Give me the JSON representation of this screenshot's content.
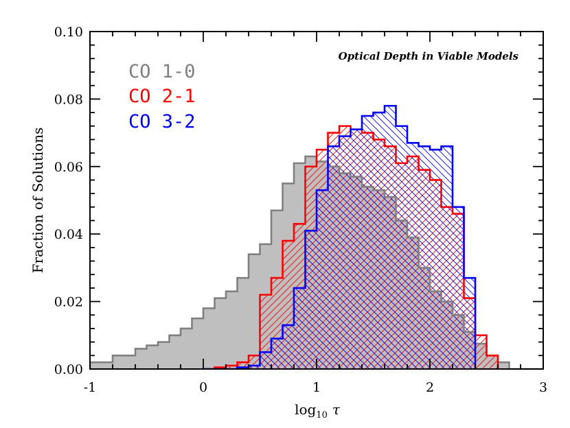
{
  "chart_data": {
    "type": "bar",
    "subtype": "step-histogram",
    "title": "Optical Depth in Viable Models",
    "xlabel_prefix": "log",
    "xlabel_subscript": "10",
    "xlabel_symbol": "τ",
    "ylabel": "Fraction of Solutions",
    "xlim": [
      -1,
      3
    ],
    "ylim": [
      0,
      0.1
    ],
    "xticks": [
      "-1",
      "0",
      "1",
      "2",
      "3"
    ],
    "yticks": [
      "0.00",
      "0.02",
      "0.04",
      "0.06",
      "0.08",
      "0.10"
    ],
    "bin_width": 0.1,
    "legend_position": "top-left",
    "series": [
      {
        "name": "CO 1-0",
        "color": "#808080",
        "fill": "#bfbfbf",
        "x": [
          -1.0,
          -0.9,
          -0.8,
          -0.7,
          -0.6,
          -0.5,
          -0.4,
          -0.3,
          -0.2,
          -0.1,
          0.0,
          0.1,
          0.2,
          0.3,
          0.4,
          0.5,
          0.6,
          0.7,
          0.8,
          0.9,
          1.0,
          1.1,
          1.2,
          1.3,
          1.4,
          1.5,
          1.6,
          1.7,
          1.8,
          1.9,
          2.0,
          2.1,
          2.2,
          2.3,
          2.4,
          2.5,
          2.6,
          2.7,
          2.8,
          2.9
        ],
        "values": [
          0.002,
          0.002,
          0.004,
          0.004,
          0.006,
          0.007,
          0.008,
          0.01,
          0.012,
          0.015,
          0.018,
          0.021,
          0.023,
          0.027,
          0.034,
          0.037,
          0.047,
          0.055,
          0.061,
          0.063,
          0.0615,
          0.06,
          0.058,
          0.057,
          0.054,
          0.053,
          0.051,
          0.044,
          0.039,
          0.03,
          0.023,
          0.02,
          0.016,
          0.011,
          0.0075,
          0.004,
          0.002,
          0.0,
          0.0,
          0.0
        ]
      },
      {
        "name": "CO 2-1",
        "color": "#ff0000",
        "x": [
          0.0,
          0.1,
          0.2,
          0.3,
          0.4,
          0.5,
          0.6,
          0.7,
          0.8,
          0.9,
          1.0,
          1.1,
          1.2,
          1.3,
          1.4,
          1.5,
          1.6,
          1.7,
          1.8,
          1.9,
          2.0,
          2.1,
          2.2,
          2.3,
          2.4,
          2.5
        ],
        "values": [
          0.0,
          0.0005,
          0.001,
          0.002,
          0.004,
          0.022,
          0.027,
          0.038,
          0.043,
          0.06,
          0.065,
          0.07,
          0.072,
          0.071,
          0.07,
          0.068,
          0.066,
          0.061,
          0.063,
          0.059,
          0.056,
          0.048,
          0.046,
          0.021,
          0.01,
          0.004
        ]
      },
      {
        "name": "CO 3-2",
        "color": "#0000ff",
        "x": [
          0.0,
          0.1,
          0.2,
          0.3,
          0.4,
          0.5,
          0.6,
          0.7,
          0.8,
          0.9,
          1.0,
          1.1,
          1.2,
          1.3,
          1.4,
          1.5,
          1.6,
          1.7,
          1.8,
          1.9,
          2.0,
          2.1,
          2.2,
          2.3
        ],
        "values": [
          0.0,
          0.0,
          0.0,
          0.0005,
          0.001,
          0.005,
          0.009,
          0.013,
          0.024,
          0.041,
          0.053,
          0.066,
          0.069,
          0.071,
          0.075,
          0.076,
          0.078,
          0.072,
          0.067,
          0.066,
          0.065,
          0.066,
          0.048,
          0.027
        ]
      }
    ]
  }
}
